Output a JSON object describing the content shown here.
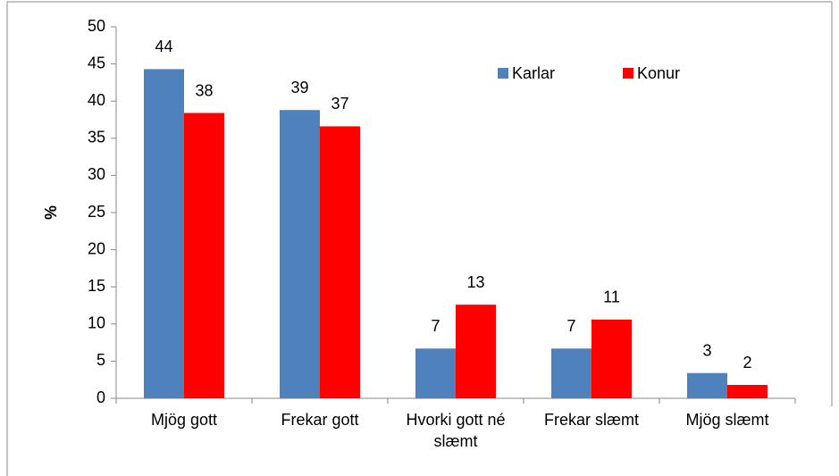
{
  "chart_data": {
    "type": "bar",
    "categories": [
      "Mjög gott",
      "Frekar gott",
      "Hvorki gott né slæmt",
      "Frekar slæmt",
      "Mjög slæmt"
    ],
    "series": [
      {
        "name": "Karlar",
        "color": "#4f81bd",
        "values": [
          44.3,
          38.8,
          6.7,
          6.7,
          3.4
        ],
        "value_labels": [
          "44",
          "39",
          "7",
          "7",
          "3"
        ]
      },
      {
        "name": "Konur",
        "color": "#ff0000",
        "values": [
          38.4,
          36.6,
          12.6,
          10.6,
          1.8
        ],
        "value_labels": [
          "38",
          "37",
          "13",
          "11",
          "2"
        ]
      }
    ],
    "ylabel": "%",
    "ylim": [
      0,
      50
    ],
    "yticks": [
      0,
      5,
      10,
      15,
      20,
      25,
      30,
      35,
      40,
      45,
      50
    ],
    "legend": "upper right"
  }
}
